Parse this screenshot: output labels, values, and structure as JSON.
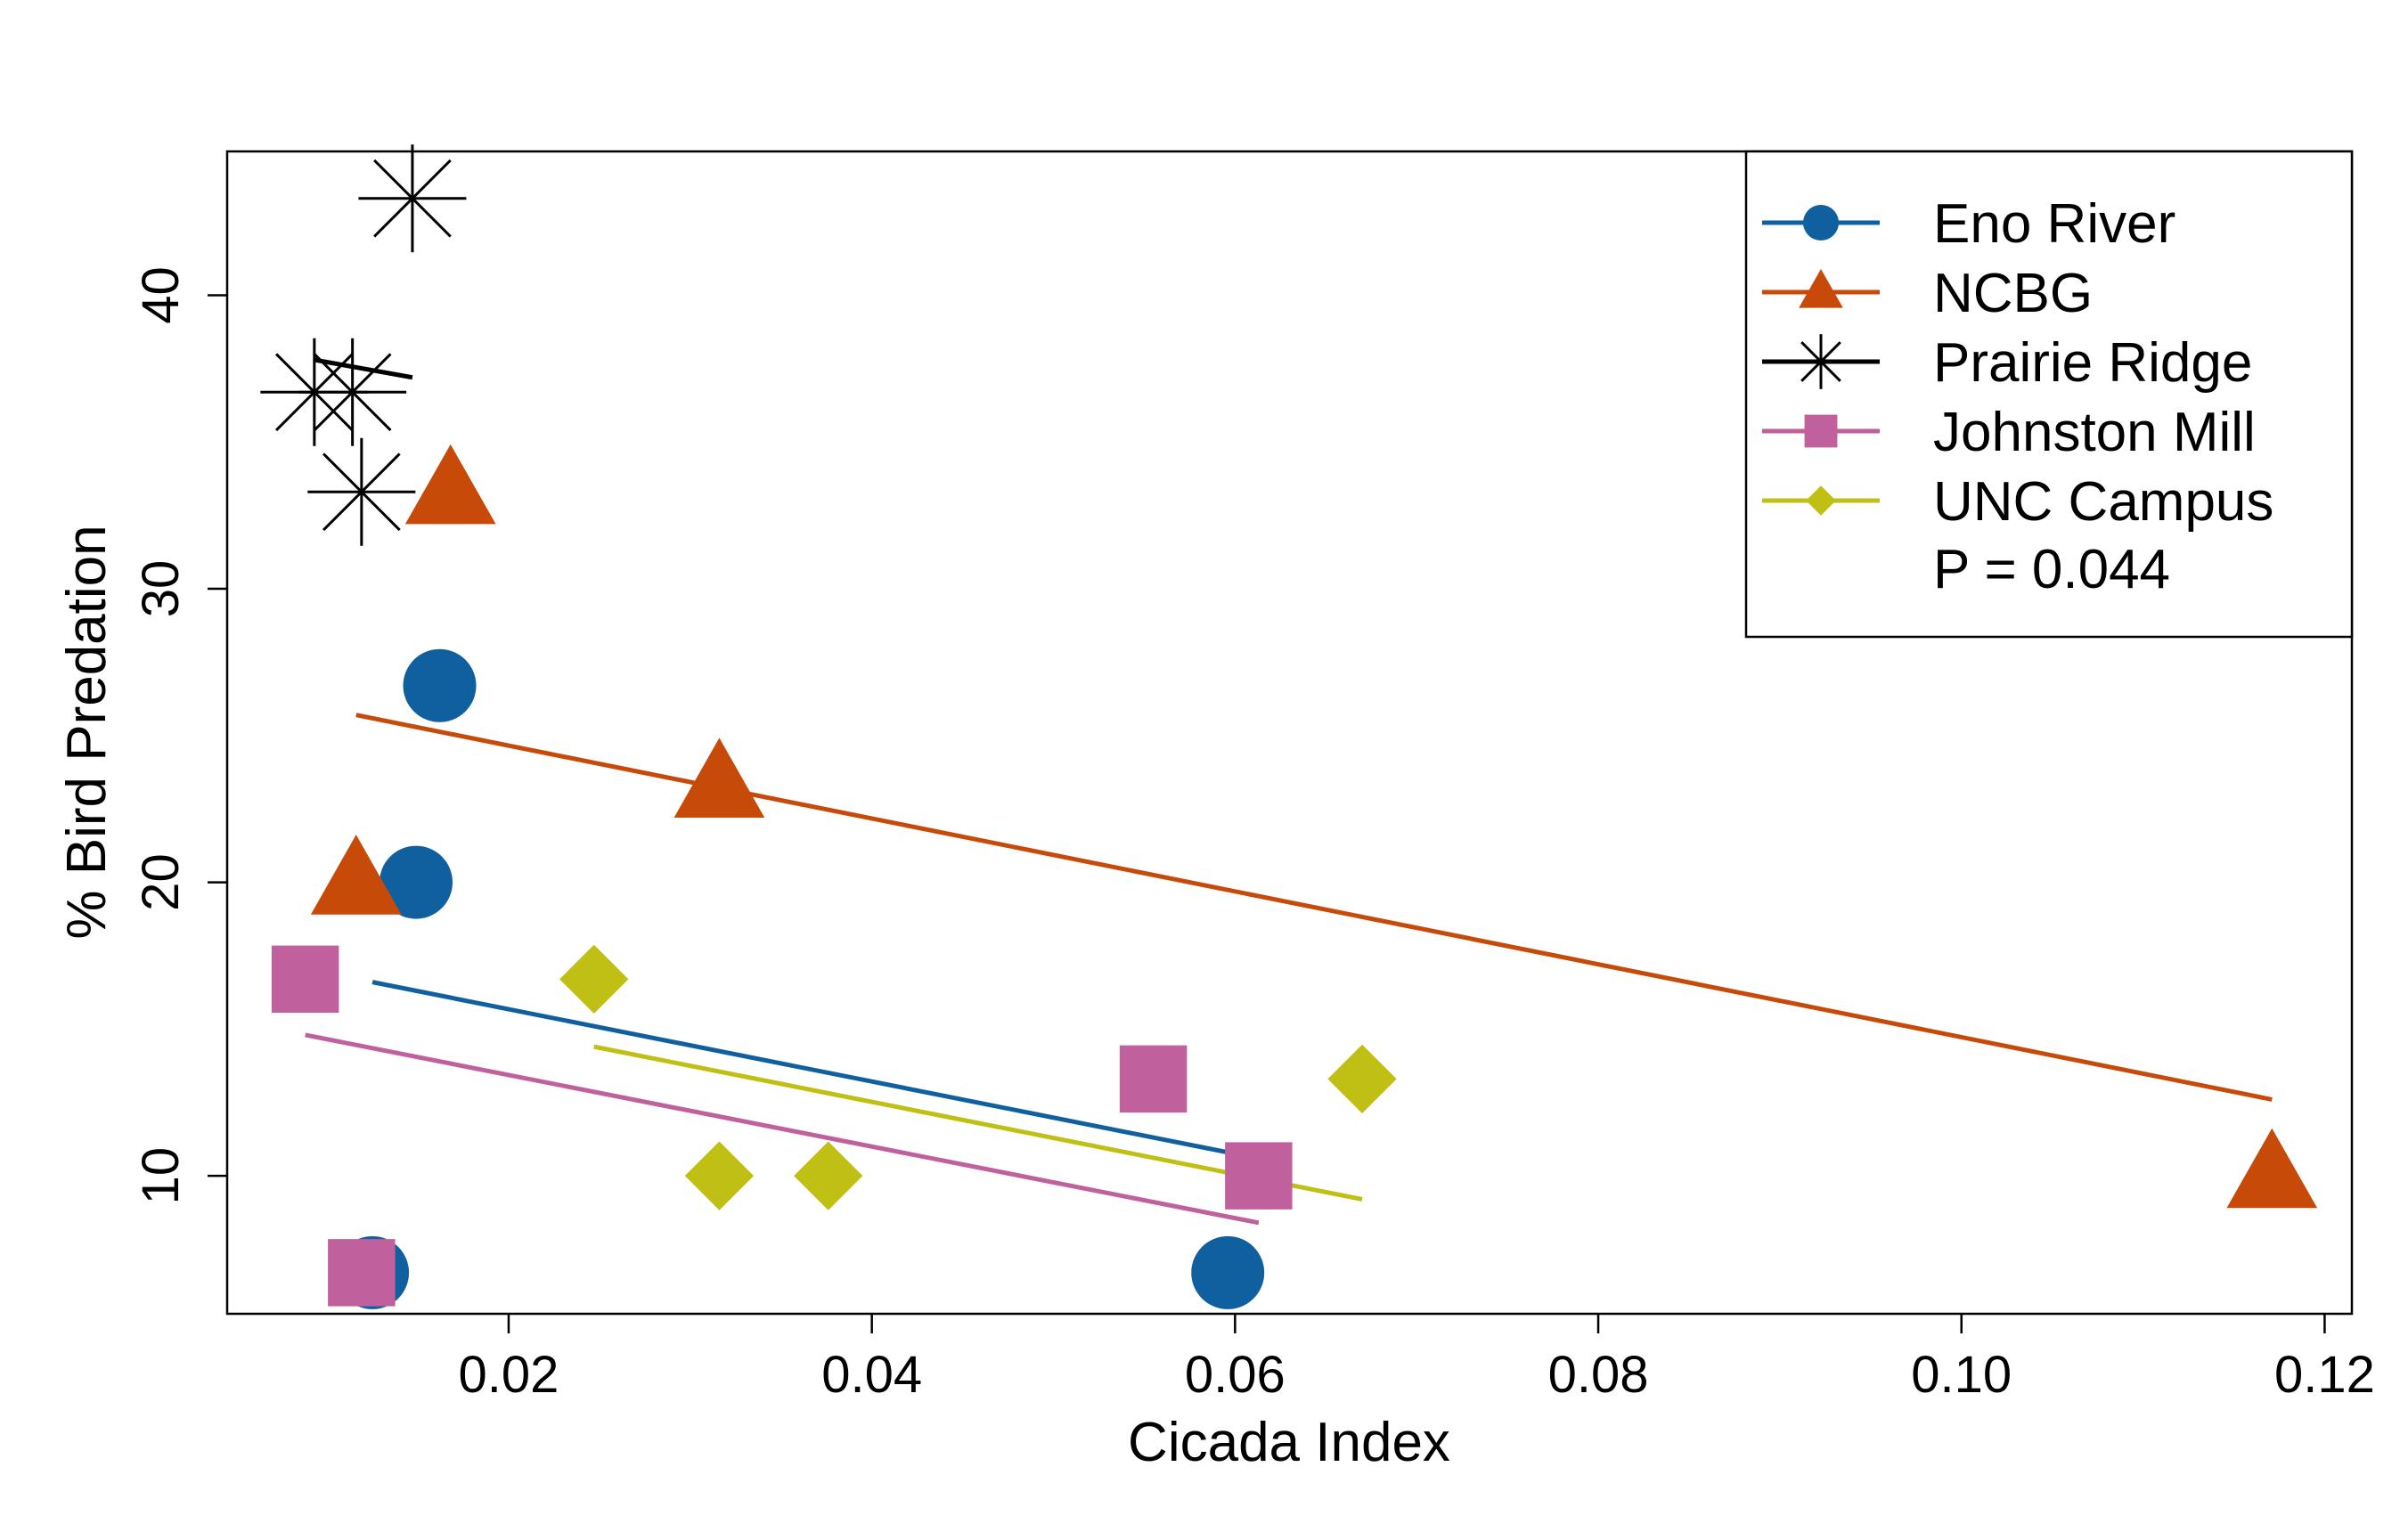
{
  "chart_data": {
    "type": "scatter",
    "xlabel": "Cicada Index",
    "ylabel": "% Bird Predation",
    "xlim": [
      0.0045,
      0.1215
    ],
    "ylim": [
      5.3,
      44.9
    ],
    "x_ticks": [
      0.02,
      0.04,
      0.06,
      0.08,
      0.1,
      0.12
    ],
    "x_tick_labels": [
      "0.02",
      "0.04",
      "0.06",
      "0.08",
      "0.10",
      "0.12"
    ],
    "y_ticks": [
      10,
      20,
      30,
      40
    ],
    "y_tick_labels": [
      "10",
      "20",
      "30",
      "40"
    ],
    "grid": false,
    "legend_position": "top-right",
    "annotation": "P = 0.044",
    "series": [
      {
        "name": "Eno River",
        "color": "#1060a0",
        "marker": "circle",
        "points": [
          [
            0.0162,
            26.7
          ],
          [
            0.0149,
            20.0
          ],
          [
            0.0125,
            6.7
          ],
          [
            0.0596,
            6.7
          ]
        ],
        "fit": [
          [
            0.0125,
            16.6
          ],
          [
            0.0596,
            10.8
          ]
        ]
      },
      {
        "name": "NCBG",
        "color": "#c84a08",
        "marker": "triangle",
        "points": [
          [
            0.0168,
            33.3
          ],
          [
            0.0116,
            20.0
          ],
          [
            0.0316,
            23.3
          ],
          [
            0.1171,
            10.0
          ]
        ],
        "fit": [
          [
            0.0116,
            25.7
          ],
          [
            0.1171,
            12.6
          ]
        ]
      },
      {
        "name": "Prairie Ridge",
        "color": "#000000",
        "marker": "asterisk",
        "points": [
          [
            0.0147,
            43.3
          ],
          [
            0.0093,
            36.7
          ],
          [
            0.0114,
            36.7
          ],
          [
            0.0119,
            33.3
          ]
        ],
        "fit": [
          [
            0.0093,
            37.8
          ],
          [
            0.0147,
            37.2
          ]
        ]
      },
      {
        "name": "Johnston Mill",
        "color": "#c0609c",
        "marker": "square",
        "points": [
          [
            0.0088,
            16.7
          ],
          [
            0.0119,
            6.7
          ],
          [
            0.0555,
            13.3
          ],
          [
            0.0613,
            10.0
          ]
        ],
        "fit": [
          [
            0.0088,
            14.8
          ],
          [
            0.0613,
            8.4
          ]
        ]
      },
      {
        "name": "UNC Campus",
        "color": "#c0c014",
        "marker": "diamond",
        "points": [
          [
            0.0247,
            16.7
          ],
          [
            0.0316,
            10.0
          ],
          [
            0.0376,
            10.0
          ],
          [
            0.067,
            13.3
          ]
        ],
        "fit": [
          [
            0.0247,
            14.4
          ],
          [
            0.067,
            9.2
          ]
        ]
      }
    ]
  }
}
